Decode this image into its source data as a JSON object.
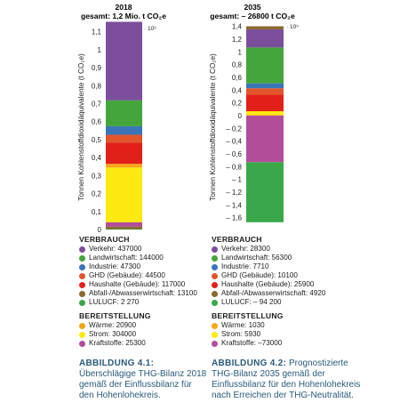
{
  "colors": {
    "verkehr": "#7b4e9c",
    "landwirtschaft": "#43a53c",
    "industrie": "#3a75b9",
    "ghd": "#e2552c",
    "haushalte": "#e2201a",
    "abfall": "#8a6a2e",
    "lulucf": "#3aa84a",
    "waerme": "#f6a51a",
    "strom": "#fbe90f",
    "kraftstoffe": "#b24d9a",
    "caption": "#2a5a78"
  },
  "chart_data": [
    {
      "type": "bar",
      "stacked": true,
      "title": "2018",
      "subtitle": "gesamt: 1,2 Mio. t CO₂e",
      "ylabel": "Tonnen Kohlenstoffdioxidäquivalente (t CO₂e)",
      "unit_label": "· 10⁶",
      "ylim": [
        0,
        1.18
      ],
      "yticks": [
        0,
        0.1,
        0.2,
        0.3,
        0.4,
        0.5,
        0.6,
        0.7,
        0.8,
        0.9,
        1,
        1.1
      ],
      "ytick_labels": [
        "0",
        "0,1",
        "0,2",
        "0,3",
        "0,4",
        "0,5",
        "0,6",
        "0,7",
        "0,8",
        "0,9",
        "1",
        "1,1"
      ],
      "stack_order_bottom_to_top": [
        "lulucf",
        "abfall",
        "kraftstoffe",
        "strom",
        "waerme",
        "haushalte",
        "ghd",
        "industrie",
        "landwirtschaft",
        "verkehr"
      ],
      "values": {
        "verkehr": 437000,
        "landwirtschaft": 144000,
        "industrie": 47300,
        "ghd": 44500,
        "haushalte": 117000,
        "abfall": 13100,
        "lulucf": 2270,
        "waerme": 20900,
        "strom": 304000,
        "kraftstoffe": 25300
      }
    },
    {
      "type": "bar",
      "stacked": true,
      "title": "2035",
      "subtitle": "gesamt: – 26800 t CO₂e",
      "ylabel": "Tonnen Kohlenstoffdioxidäquivalente (t CO₂e)",
      "unit_label": "· 10⁵",
      "ylim": [
        -1.7,
        1.4
      ],
      "yticks": [
        -1.6,
        -1.4,
        -1.2,
        -1,
        -0.8,
        -0.6,
        -0.4,
        -0.2,
        0,
        0.2,
        0.4,
        0.6,
        0.8,
        1,
        1.2,
        1.4
      ],
      "ytick_labels": [
        "– 1,6",
        "– 1,4",
        "– 1,2",
        "– 1",
        "– 0,8",
        "– 0,6",
        "– 0,4",
        "– 0,2",
        "0",
        "0,2",
        "0,4",
        "0,6",
        "0,8",
        "1",
        "1,2",
        "1,4"
      ],
      "stack_order_positive_bottom_to_top": [
        "waerme",
        "strom",
        "haushalte",
        "ghd",
        "industrie",
        "landwirtschaft",
        "verkehr",
        "abfall"
      ],
      "stack_order_negative_top_to_bottom": [
        "kraftstoffe",
        "lulucf"
      ],
      "values": {
        "verkehr": 28300,
        "landwirtschaft": 56300,
        "industrie": 7710,
        "ghd": 10100,
        "haushalte": 25900,
        "abfall": 4920,
        "lulucf": -94200,
        "waerme": 1030,
        "strom": 5930,
        "kraftstoffe": -73000
      }
    }
  ],
  "legend_2018": {
    "verbrauch_head": "VERBRAUCH",
    "verbrauch": [
      {
        "key": "verkehr",
        "label": "Verkehr: 437000"
      },
      {
        "key": "landwirtschaft",
        "label": "Landwirtschaft: 144000"
      },
      {
        "key": "industrie",
        "label": "Industrie: 47300"
      },
      {
        "key": "ghd",
        "label": "GHD (Gebäude): 44500"
      },
      {
        "key": "haushalte",
        "label": "Haushalte (Gebäude): 117000"
      },
      {
        "key": "abfall",
        "label": "Abfall-/Abwasserwirtschaft: 13100"
      },
      {
        "key": "lulucf",
        "label": "LULUCF: 2 270"
      }
    ],
    "bereit_head": "BEREITSTELLUNG",
    "bereit": [
      {
        "key": "waerme",
        "label": "Wärme: 20900"
      },
      {
        "key": "strom",
        "label": "Strom: 304000"
      },
      {
        "key": "kraftstoffe",
        "label": "Kraftstoffe: 25300"
      }
    ]
  },
  "legend_2035": {
    "verbrauch_head": "VERBRAUCH",
    "verbrauch": [
      {
        "key": "verkehr",
        "label": "Verkehr: 28300"
      },
      {
        "key": "landwirtschaft",
        "label": "Landwirtschaft: 56300"
      },
      {
        "key": "industrie",
        "label": "Industrie: 7710"
      },
      {
        "key": "ghd",
        "label": "GHD (Gebäude): 10100"
      },
      {
        "key": "haushalte",
        "label": "Haushalte (Gebäude): 25900"
      },
      {
        "key": "abfall",
        "label": "Abfall-/Abwasserwirtschaft: 4920"
      },
      {
        "key": "lulucf",
        "label": "LULUCF: – 94 200"
      }
    ],
    "bereit_head": "BEREITSTELLUNG",
    "bereit": [
      {
        "key": "waerme",
        "label": "Wärme: 1030"
      },
      {
        "key": "strom",
        "label": "Strom: 5930"
      },
      {
        "key": "kraftstoffe",
        "label": "Kraftstoffe: –73000"
      }
    ]
  },
  "caption_2018": {
    "label": "ABBILDUNG 4.1:",
    "text": " Überschlägige THG-Bilanz 2018 gemäß der Einflussbilanz für den Hohenlohekreis."
  },
  "caption_2035": {
    "label": "ABBILDUNG 4.2:",
    "text": " Prognostizierte THG-Bilanz 2035 gemäß der Einflussbilanz für den Hohenlohekreis nach Erreichen der THG-Neutralität."
  }
}
